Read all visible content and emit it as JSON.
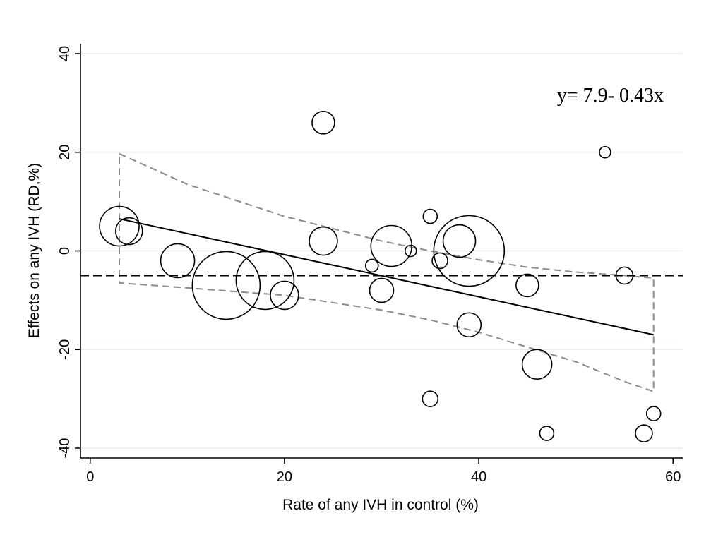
{
  "chart_data": {
    "type": "scatter",
    "xlabel": "Rate of any IVH in control (%)",
    "ylabel": "Effects on any IVH (RD,%)",
    "xlim": [
      -1,
      61
    ],
    "ylim": [
      -42,
      42
    ],
    "xticks": [
      0,
      20,
      40,
      60
    ],
    "yticks": [
      -40,
      -20,
      0,
      20,
      40
    ],
    "xtick_labels": [
      "0",
      "20",
      "40",
      "60"
    ],
    "ytick_labels": [
      "-40",
      "-20",
      "0",
      "20",
      "40"
    ],
    "grid": "horizontal",
    "annotation": "y= 7.9- 0.43x",
    "reference_line_y": -5,
    "points": [
      {
        "x": 3,
        "y": 5,
        "weight": 28
      },
      {
        "x": 4,
        "y": 4,
        "weight": 19
      },
      {
        "x": 9,
        "y": -2,
        "weight": 24
      },
      {
        "x": 14,
        "y": -7,
        "weight": 48
      },
      {
        "x": 18,
        "y": -6,
        "weight": 41
      },
      {
        "x": 20,
        "y": -9,
        "weight": 20
      },
      {
        "x": 24,
        "y": 26,
        "weight": 16
      },
      {
        "x": 24,
        "y": 2,
        "weight": 20
      },
      {
        "x": 29,
        "y": -3,
        "weight": 9
      },
      {
        "x": 30,
        "y": -8,
        "weight": 17
      },
      {
        "x": 31,
        "y": 1,
        "weight": 29
      },
      {
        "x": 33,
        "y": 0,
        "weight": 8
      },
      {
        "x": 35,
        "y": 7,
        "weight": 10
      },
      {
        "x": 35,
        "y": -30,
        "weight": 11
      },
      {
        "x": 36,
        "y": -2,
        "weight": 11
      },
      {
        "x": 38,
        "y": 2,
        "weight": 23
      },
      {
        "x": 39,
        "y": 0,
        "weight": 50
      },
      {
        "x": 39,
        "y": -15,
        "weight": 17
      },
      {
        "x": 45,
        "y": -7,
        "weight": 16
      },
      {
        "x": 46,
        "y": -23,
        "weight": 21
      },
      {
        "x": 47,
        "y": -37,
        "weight": 10
      },
      {
        "x": 53,
        "y": 20,
        "weight": 8
      },
      {
        "x": 55,
        "y": -5,
        "weight": 12
      },
      {
        "x": 57,
        "y": -37,
        "weight": 12
      },
      {
        "x": 58,
        "y": -33,
        "weight": 10
      }
    ],
    "fit_line": {
      "x": [
        3,
        58
      ],
      "y": [
        6.5,
        -17
      ]
    },
    "confidence_band": {
      "x": [
        3,
        10,
        20,
        30,
        35,
        40,
        45,
        50,
        55,
        58
      ],
      "upper": [
        19.7,
        13.5,
        7.0,
        2.0,
        0.0,
        -1.8,
        -3.3,
        -4.3,
        -5.0,
        -5.5
      ],
      "lower": [
        -6.5,
        -7.5,
        -9.0,
        -12.0,
        -14.0,
        -16.5,
        -19.5,
        -22.5,
        -26.5,
        -28.5
      ]
    },
    "colors": {
      "markers": "#000000",
      "fit_line": "#000000",
      "confidence_band": "#8c8c8c",
      "reference_line": "#000000",
      "grid": "#e6eef1"
    }
  }
}
